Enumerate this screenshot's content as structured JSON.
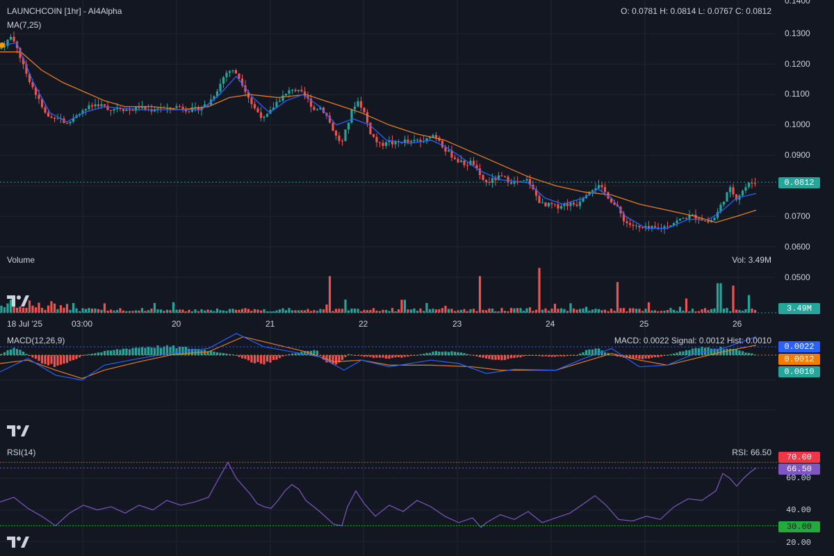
{
  "colors": {
    "bg": "#131722",
    "grid": "#1f2433",
    "text": "#d1d4dc",
    "up": "#26a69a",
    "down": "#ef5350",
    "ma_fast": "#2962ff",
    "ma_slow": "#e67e22",
    "macd_line": "#2962ff",
    "signal_line": "#e67e22",
    "rsi": "#7e57c2",
    "rsi_high": "#f23645",
    "rsi_low": "#22ab3a"
  },
  "price_panel": {
    "title": "LAUNCHCOIN [1hr] - AI4Alpha",
    "indicator": "MA(7,25)",
    "ohlc": "O: 0.0781 H: 0.0814 L: 0.0767 C: 0.0812",
    "last_price_tag": "0.0812",
    "y_ticks": [
      "0.1400",
      "0.1300",
      "0.1200",
      "0.1100",
      "0.1000",
      "0.0900",
      "0.0700",
      "0.0600",
      "0.0500"
    ]
  },
  "volume_panel": {
    "label": "Volume",
    "readout": "Vol: 3.49M",
    "tag": "3.49M"
  },
  "time_axis": {
    "labels": [
      "18 Jul '25",
      "03:00",
      "20",
      "21",
      "22",
      "23",
      "24",
      "25",
      "26"
    ]
  },
  "macd_panel": {
    "label": "MACD(12,26,9)",
    "readout": "MACD: 0.0022 Signal: 0.0012 Hist: 0.0010",
    "tags": [
      "0.0022",
      "0.0012",
      "0.0010"
    ]
  },
  "rsi_panel": {
    "label": "RSI(14)",
    "readout": "RSI: 66.50",
    "tags": [
      "70.00",
      "66.50",
      "30.00"
    ],
    "y_ticks": [
      "60.00",
      "40.00",
      "20.00"
    ]
  },
  "chart_data": {
    "type": "candlestick",
    "symbol": "LAUNCHCOIN",
    "interval": "1hr",
    "x_range": [
      "18 Jul '25",
      "26"
    ],
    "price_ylim": [
      0.05,
      0.14
    ],
    "last": {
      "open": 0.0781,
      "high": 0.0814,
      "low": 0.0767,
      "close": 0.0812,
      "volume": "3.49M"
    },
    "close_path": [
      [
        0,
        0.125
      ],
      [
        8,
        0.127
      ],
      [
        16,
        0.129
      ],
      [
        24,
        0.126
      ],
      [
        32,
        0.12
      ],
      [
        40,
        0.116
      ],
      [
        48,
        0.112
      ],
      [
        56,
        0.108
      ],
      [
        64,
        0.104
      ],
      [
        72,
        0.102
      ],
      [
        80,
        0.103
      ],
      [
        88,
        0.102
      ],
      [
        96,
        0.1
      ],
      [
        104,
        0.102
      ],
      [
        112,
        0.104
      ],
      [
        120,
        0.105
      ],
      [
        130,
        0.106
      ],
      [
        140,
        0.107
      ],
      [
        150,
        0.106
      ],
      [
        160,
        0.105
      ],
      [
        170,
        0.106
      ],
      [
        180,
        0.105
      ],
      [
        190,
        0.105
      ],
      [
        200,
        0.106
      ],
      [
        210,
        0.105
      ],
      [
        220,
        0.105
      ],
      [
        230,
        0.106
      ],
      [
        240,
        0.105
      ],
      [
        250,
        0.106
      ],
      [
        260,
        0.106
      ],
      [
        270,
        0.105
      ],
      [
        280,
        0.105
      ],
      [
        290,
        0.106
      ],
      [
        300,
        0.107
      ],
      [
        308,
        0.11
      ],
      [
        316,
        0.113
      ],
      [
        324,
        0.117
      ],
      [
        332,
        0.118
      ],
      [
        340,
        0.117
      ],
      [
        348,
        0.114
      ],
      [
        356,
        0.11
      ],
      [
        364,
        0.106
      ],
      [
        372,
        0.104
      ],
      [
        380,
        0.102
      ],
      [
        388,
        0.104
      ],
      [
        396,
        0.107
      ],
      [
        404,
        0.109
      ],
      [
        412,
        0.11
      ],
      [
        420,
        0.112
      ],
      [
        428,
        0.111
      ],
      [
        436,
        0.11
      ],
      [
        444,
        0.108
      ],
      [
        452,
        0.105
      ],
      [
        460,
        0.106
      ],
      [
        468,
        0.104
      ],
      [
        476,
        0.1
      ],
      [
        484,
        0.096
      ],
      [
        492,
        0.094
      ],
      [
        500,
        0.1
      ],
      [
        508,
        0.106
      ],
      [
        516,
        0.108
      ],
      [
        524,
        0.104
      ],
      [
        532,
        0.098
      ],
      [
        540,
        0.095
      ],
      [
        548,
        0.093
      ],
      [
        556,
        0.095
      ],
      [
        564,
        0.094
      ],
      [
        572,
        0.094
      ],
      [
        580,
        0.095
      ],
      [
        590,
        0.094
      ],
      [
        600,
        0.095
      ],
      [
        610,
        0.094
      ],
      [
        620,
        0.097
      ],
      [
        630,
        0.096
      ],
      [
        640,
        0.092
      ],
      [
        650,
        0.09
      ],
      [
        660,
        0.088
      ],
      [
        670,
        0.087
      ],
      [
        680,
        0.088
      ],
      [
        690,
        0.083
      ],
      [
        700,
        0.081
      ],
      [
        710,
        0.082
      ],
      [
        720,
        0.083
      ],
      [
        730,
        0.082
      ],
      [
        740,
        0.081
      ],
      [
        750,
        0.081
      ],
      [
        760,
        0.082
      ],
      [
        768,
        0.078
      ],
      [
        776,
        0.075
      ],
      [
        784,
        0.073
      ],
      [
        792,
        0.074
      ],
      [
        800,
        0.073
      ],
      [
        810,
        0.074
      ],
      [
        820,
        0.074
      ],
      [
        830,
        0.074
      ],
      [
        840,
        0.077
      ],
      [
        850,
        0.079
      ],
      [
        860,
        0.08
      ],
      [
        870,
        0.078
      ],
      [
        880,
        0.075
      ],
      [
        890,
        0.072
      ],
      [
        900,
        0.068
      ],
      [
        910,
        0.067
      ],
      [
        920,
        0.066
      ],
      [
        930,
        0.066
      ],
      [
        940,
        0.066
      ],
      [
        950,
        0.066
      ],
      [
        960,
        0.067
      ],
      [
        970,
        0.068
      ],
      [
        980,
        0.069
      ],
      [
        990,
        0.07
      ],
      [
        1000,
        0.07
      ],
      [
        1010,
        0.069
      ],
      [
        1020,
        0.068
      ],
      [
        1030,
        0.07
      ],
      [
        1040,
        0.075
      ],
      [
        1050,
        0.079
      ],
      [
        1060,
        0.076
      ],
      [
        1070,
        0.079
      ],
      [
        1080,
        0.081
      ],
      [
        1088,
        0.0812
      ]
    ],
    "ma7": [
      [
        0,
        0.126
      ],
      [
        24,
        0.127
      ],
      [
        48,
        0.114
      ],
      [
        72,
        0.104
      ],
      [
        96,
        0.101
      ],
      [
        120,
        0.104
      ],
      [
        150,
        0.106
      ],
      [
        200,
        0.105
      ],
      [
        250,
        0.105
      ],
      [
        290,
        0.105
      ],
      [
        316,
        0.11
      ],
      [
        340,
        0.116
      ],
      [
        364,
        0.109
      ],
      [
        388,
        0.104
      ],
      [
        412,
        0.108
      ],
      [
        436,
        0.11
      ],
      [
        460,
        0.106
      ],
      [
        484,
        0.1
      ],
      [
        508,
        0.102
      ],
      [
        532,
        0.1
      ],
      [
        556,
        0.095
      ],
      [
        590,
        0.094
      ],
      [
        620,
        0.095
      ],
      [
        640,
        0.093
      ],
      [
        660,
        0.09
      ],
      [
        690,
        0.085
      ],
      [
        720,
        0.082
      ],
      [
        760,
        0.081
      ],
      [
        784,
        0.076
      ],
      [
        810,
        0.074
      ],
      [
        840,
        0.076
      ],
      [
        860,
        0.079
      ],
      [
        880,
        0.076
      ],
      [
        900,
        0.07
      ],
      [
        930,
        0.066
      ],
      [
        960,
        0.066
      ],
      [
        990,
        0.069
      ],
      [
        1020,
        0.069
      ],
      [
        1040,
        0.072
      ],
      [
        1060,
        0.076
      ],
      [
        1088,
        0.0775
      ]
    ],
    "ma25": [
      [
        0,
        0.124
      ],
      [
        30,
        0.124
      ],
      [
        60,
        0.118
      ],
      [
        90,
        0.114
      ],
      [
        120,
        0.111
      ],
      [
        150,
        0.108
      ],
      [
        180,
        0.106
      ],
      [
        220,
        0.106
      ],
      [
        260,
        0.105
      ],
      [
        300,
        0.106
      ],
      [
        330,
        0.109
      ],
      [
        360,
        0.11
      ],
      [
        400,
        0.109
      ],
      [
        440,
        0.11
      ],
      [
        480,
        0.107
      ],
      [
        520,
        0.104
      ],
      [
        560,
        0.1
      ],
      [
        600,
        0.097
      ],
      [
        640,
        0.095
      ],
      [
        680,
        0.091
      ],
      [
        720,
        0.087
      ],
      [
        760,
        0.083
      ],
      [
        800,
        0.08
      ],
      [
        840,
        0.078
      ],
      [
        880,
        0.077
      ],
      [
        920,
        0.074
      ],
      [
        960,
        0.072
      ],
      [
        1000,
        0.07
      ],
      [
        1030,
        0.068
      ],
      [
        1060,
        0.07
      ],
      [
        1088,
        0.072
      ]
    ],
    "volume_spikes": [
      [
        476,
        3.1
      ],
      [
        580,
        1.1
      ],
      [
        690,
        3.1
      ],
      [
        775,
        3.8
      ],
      [
        888,
        2.6
      ],
      [
        1035,
        2.5
      ],
      [
        1056,
        2.3
      ],
      [
        1078,
        1.5
      ]
    ],
    "macd_ylim": [
      -0.006,
      0.0035
    ],
    "macd": [
      [
        0,
        -0.002
      ],
      [
        40,
        -0.0004
      ],
      [
        80,
        -0.0024
      ],
      [
        118,
        -0.003
      ],
      [
        150,
        -0.0012
      ],
      [
        200,
        -0.0004
      ],
      [
        250,
        0.0003
      ],
      [
        300,
        0.0008
      ],
      [
        340,
        0.0026
      ],
      [
        380,
        0.001
      ],
      [
        420,
        0.0004
      ],
      [
        460,
        -0.0002
      ],
      [
        495,
        -0.0018
      ],
      [
        520,
        -0.0006
      ],
      [
        560,
        -0.0014
      ],
      [
        620,
        -0.0006
      ],
      [
        660,
        -0.001
      ],
      [
        700,
        -0.0022
      ],
      [
        740,
        -0.0017
      ],
      [
        800,
        -0.0018
      ],
      [
        840,
        -0.0004
      ],
      [
        880,
        0.0008
      ],
      [
        920,
        -0.0014
      ],
      [
        960,
        -0.0012
      ],
      [
        1000,
        0.0002
      ],
      [
        1040,
        0.0008
      ],
      [
        1088,
        0.0022
      ]
    ],
    "signal": [
      [
        0,
        -0.001
      ],
      [
        40,
        -0.0006
      ],
      [
        80,
        -0.0018
      ],
      [
        118,
        -0.0028
      ],
      [
        150,
        -0.0018
      ],
      [
        200,
        -0.0008
      ],
      [
        250,
        0.0001
      ],
      [
        300,
        0.0004
      ],
      [
        350,
        0.0022
      ],
      [
        400,
        0.0012
      ],
      [
        440,
        0.0004
      ],
      [
        480,
        -0.0008
      ],
      [
        520,
        -0.0006
      ],
      [
        560,
        -0.0012
      ],
      [
        620,
        -0.0012
      ],
      [
        680,
        -0.0014
      ],
      [
        720,
        -0.0018
      ],
      [
        760,
        -0.0018
      ],
      [
        800,
        -0.0018
      ],
      [
        840,
        -0.0008
      ],
      [
        880,
        0.0002
      ],
      [
        920,
        -0.0006
      ],
      [
        960,
        -0.0012
      ],
      [
        1000,
        -0.0004
      ],
      [
        1040,
        0.0004
      ],
      [
        1088,
        0.0012
      ]
    ],
    "hist_zones": [
      [
        0,
        40,
        0.0009
      ],
      [
        40,
        120,
        -0.0013
      ],
      [
        120,
        340,
        0.0011
      ],
      [
        340,
        410,
        -0.0011
      ],
      [
        410,
        510,
        0.0006
      ],
      [
        460,
        500,
        -0.0012
      ],
      [
        510,
        600,
        -0.0004
      ],
      [
        600,
        680,
        0.0005
      ],
      [
        680,
        760,
        -0.0006
      ],
      [
        760,
        830,
        -0.0002
      ],
      [
        830,
        880,
        0.0008
      ],
      [
        880,
        960,
        -0.0005
      ],
      [
        960,
        1090,
        0.001
      ]
    ],
    "rsi_ylim": [
      15,
      75
    ],
    "rsi": [
      [
        0,
        45
      ],
      [
        20,
        48
      ],
      [
        40,
        41
      ],
      [
        60,
        36
      ],
      [
        80,
        30
      ],
      [
        100,
        38
      ],
      [
        120,
        43
      ],
      [
        140,
        40
      ],
      [
        160,
        42
      ],
      [
        180,
        38
      ],
      [
        200,
        43
      ],
      [
        220,
        40
      ],
      [
        240,
        46
      ],
      [
        260,
        43
      ],
      [
        280,
        45
      ],
      [
        300,
        48
      ],
      [
        315,
        60
      ],
      [
        328,
        70
      ],
      [
        340,
        60
      ],
      [
        360,
        50
      ],
      [
        370,
        44
      ],
      [
        380,
        42
      ],
      [
        390,
        41
      ],
      [
        400,
        46
      ],
      [
        410,
        52
      ],
      [
        420,
        56
      ],
      [
        430,
        53
      ],
      [
        440,
        46
      ],
      [
        460,
        39
      ],
      [
        480,
        31
      ],
      [
        492,
        30
      ],
      [
        500,
        42
      ],
      [
        512,
        52
      ],
      [
        524,
        44
      ],
      [
        540,
        36
      ],
      [
        560,
        43
      ],
      [
        580,
        39
      ],
      [
        600,
        46
      ],
      [
        620,
        42
      ],
      [
        640,
        36
      ],
      [
        660,
        32
      ],
      [
        680,
        35
      ],
      [
        692,
        29
      ],
      [
        700,
        32
      ],
      [
        720,
        37
      ],
      [
        740,
        34
      ],
      [
        760,
        39
      ],
      [
        780,
        32
      ],
      [
        800,
        35
      ],
      [
        820,
        38
      ],
      [
        840,
        44
      ],
      [
        856,
        49
      ],
      [
        872,
        43
      ],
      [
        890,
        34
      ],
      [
        910,
        33
      ],
      [
        930,
        36
      ],
      [
        950,
        34
      ],
      [
        970,
        42
      ],
      [
        990,
        47
      ],
      [
        1010,
        46
      ],
      [
        1030,
        52
      ],
      [
        1040,
        63
      ],
      [
        1050,
        60
      ],
      [
        1060,
        55
      ],
      [
        1070,
        60
      ],
      [
        1080,
        64
      ],
      [
        1088,
        66.5
      ]
    ]
  }
}
